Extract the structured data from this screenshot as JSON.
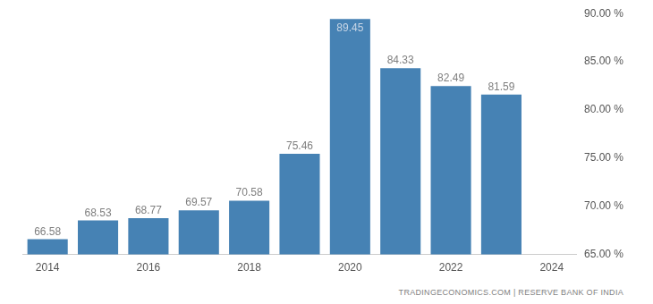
{
  "chart_data": {
    "type": "bar",
    "categories": [
      "2014",
      null,
      "2016",
      null,
      "2018",
      null,
      "2020",
      null,
      "2022",
      null,
      "2024"
    ],
    "values": [
      66.58,
      68.53,
      68.77,
      69.57,
      70.58,
      75.46,
      89.45,
      84.33,
      82.49,
      81.59,
      null
    ],
    "color": "#4682b4",
    "ylim": [
      65,
      90
    ],
    "yticks": [
      {
        "value": 65,
        "label": "65.00 %"
      },
      {
        "value": 70,
        "label": "70.00 %"
      },
      {
        "value": 75,
        "label": "75.00 %"
      },
      {
        "value": 80,
        "label": "80.00 %"
      },
      {
        "value": 85,
        "label": "85.00 %"
      },
      {
        "value": 90,
        "label": "90.00 %"
      }
    ],
    "grid": false,
    "data_labels": true,
    "source": "TRADINGECONOMICS.COM | RESERVE BANK OF INDIA"
  }
}
